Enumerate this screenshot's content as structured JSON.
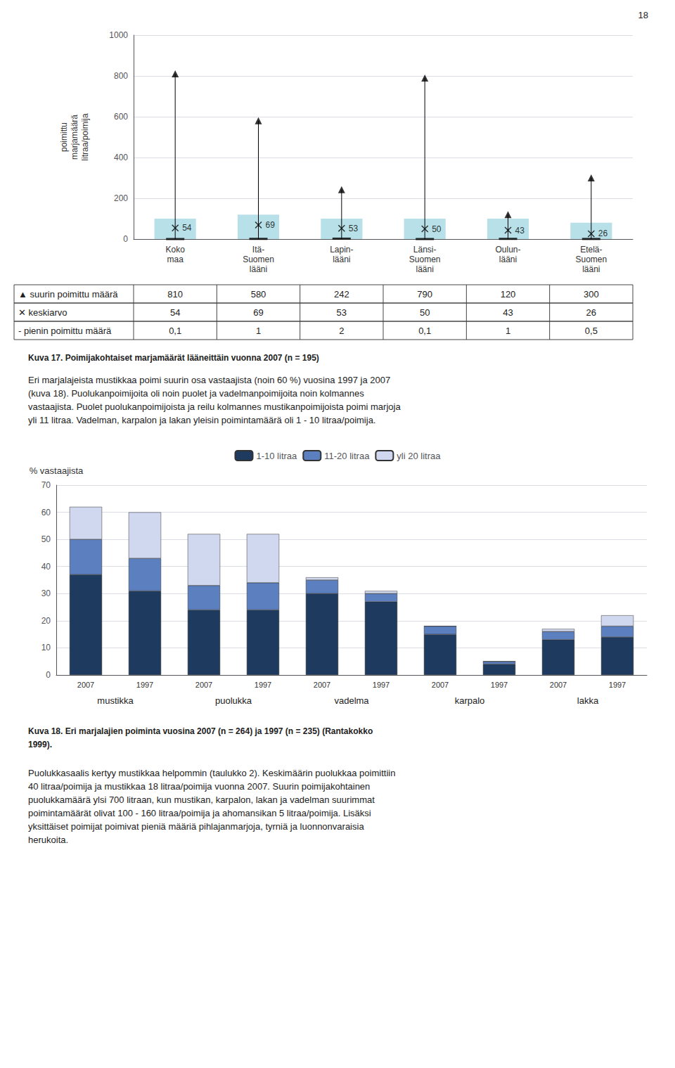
{
  "chart_data": [
    {
      "type": "bar",
      "title": "Kuva 17. Poimijakohtaiset marjamäärät lääneittäin vuonna 2007 (n = 195)",
      "ylabel": "poimittu\nmarjamäärä\nlitraa/poimija",
      "categories": [
        "Koko\nmaa",
        "Itä-\nSuomen\nlääni",
        "Lapin-\nlääni",
        "Länsi-\nSuomen\nlääni",
        "Oulun-\nlääni",
        "Etelä-\nSuomen\nlääni"
      ],
      "series": [
        {
          "type": "bar",
          "color": "#b8e0e8",
          "values": [
            100,
            120,
            100,
            100,
            100,
            80
          ]
        },
        {
          "type": "stem",
          "name": "▲ suurin poimittu määrä",
          "marker": "triangle",
          "color": "#000000",
          "values": [
            810,
            580,
            242,
            790,
            120,
            300
          ]
        },
        {
          "type": "scatter",
          "name": "✕ keskiarvo",
          "marker": "x",
          "color": "#000000",
          "data_labels": true,
          "values": [
            54,
            69,
            53,
            50,
            43,
            26
          ]
        },
        {
          "type": "scatter",
          "name": "- pienin poimittu määrä",
          "marker": "dash",
          "color": "#000000",
          "values": [
            0.1,
            1,
            2,
            0.1,
            1,
            0.5
          ],
          "value_labels": [
            "0,1",
            "1",
            "2",
            "0,1",
            "1",
            "0,5"
          ]
        }
      ],
      "ylim": [
        0,
        1000
      ],
      "yticks": [
        0,
        200,
        400,
        600,
        800,
        1000
      ],
      "grid": true,
      "annotations": [
        "18",
        "Eri marjalajeista mustikkaa poimi suurin osa vastaajista (noin 60 %) vuosina 1997 ja 2007\n(kuva 18). Puolukanpoimijoita oli noin puolet ja vadelmanpoimijoita noin kolmannes\nvastaajista. Puolet puolukanpoimijoista ja reilu kolmannes mustikanpoimijoista poimi marjoja\nyli 11 litraa. Vadelman, karpalon ja lakan yleisin poimintamäärä oli 1 - 10 litraa/poimija."
      ]
    },
    {
      "type": "bar",
      "title": "Kuva 18. Eri marjalajien poiminta vuosina 2007 (n = 264) ja 1997 (n = 235) (Rantakokko\n1999).",
      "ylabel": "% vastaajista",
      "categories": [
        "2007",
        "1997",
        "2007",
        "1997",
        "2007",
        "1997",
        "2007",
        "1997",
        "2007",
        "1997"
      ],
      "groups": [
        "mustikka",
        "puolukka",
        "vadelma",
        "karpalo",
        "lakka"
      ],
      "stacked": true,
      "series": [
        {
          "name": "1-10 litraa",
          "color": "#1e3a5f",
          "values": [
            37,
            31,
            24,
            24,
            30,
            27,
            15,
            4,
            13,
            14
          ]
        },
        {
          "name": "11-20 litraa",
          "color": "#5b7fbf",
          "values": [
            13,
            12,
            9,
            10,
            5,
            3,
            3,
            1,
            3,
            4
          ]
        },
        {
          "name": "yli 20 litraa",
          "color": "#d0d8f0",
          "values": [
            12,
            17,
            19,
            18,
            1,
            1,
            0,
            0,
            1,
            4
          ]
        }
      ],
      "ylim": [
        0,
        70
      ],
      "yticks": [
        0,
        10,
        20,
        30,
        40,
        50,
        60,
        70
      ],
      "grid": true,
      "legend": "top",
      "annotations": [
        "Puolukkasaalis kertyy mustikkaa helpommin (taulukko 2). Keskimäärin puolukkaa poimittiin\n40 litraa/poimija ja mustikkaa 18 litraa/poimija vuonna 2007. Suurin poimijakohtainen\npuolukkamäärä ylsi 700 litraan, kun mustikan, karpalon, lakan ja vadelman suurimmat\npoimintamäärät olivat 100 - 160 litraa/poimija ja ahomansikan 5 litraa/poimija. Lisäksi\nyksittäiset poimijat poimivat pieniä määriä pihlajanmarjoja, tyrniä ja luonnonvaraisia\nherukoita."
      ]
    }
  ]
}
